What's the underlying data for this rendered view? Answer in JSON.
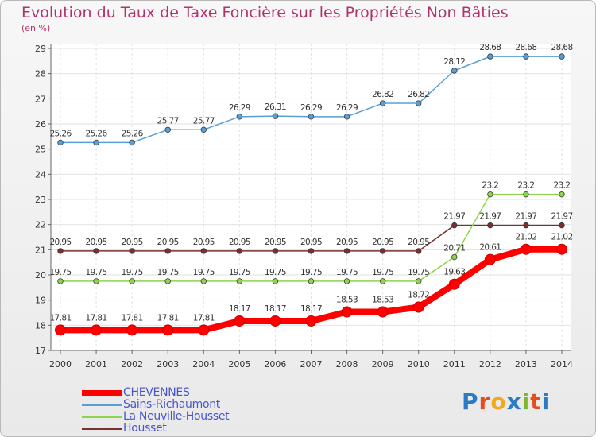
{
  "title": "Evolution du Taux de Taxe Foncière sur les Propriétés Non Bâties",
  "subtitle": "(en %)",
  "logo": "Proxiti",
  "logo_colors": [
    "#2b7bc4",
    "#e64c1e",
    "#f2a81d",
    "#2b7bc4",
    "#7ab929",
    "#e64c1e",
    "#2b7bc4"
  ],
  "chart_data": {
    "type": "line",
    "categories": [
      "2000",
      "2001",
      "2002",
      "2003",
      "2004",
      "2005",
      "2006",
      "2007",
      "2008",
      "2009",
      "2010",
      "2011",
      "2012",
      "2013",
      "2014"
    ],
    "ylim": [
      17,
      29
    ],
    "y_ticks": [
      "17",
      "18",
      "19",
      "20",
      "21",
      "22",
      "23",
      "24",
      "25",
      "26",
      "27",
      "28",
      "29"
    ],
    "grid": true,
    "legend_position": "bottom-left",
    "series": [
      {
        "name": "Sains-Richaumont",
        "color": "#5a9fd4",
        "emphasis": false,
        "values": [
          25.26,
          25.26,
          25.26,
          25.77,
          25.77,
          26.29,
          26.31,
          26.29,
          26.29,
          26.82,
          26.82,
          28.12,
          28.68,
          28.68,
          28.68
        ],
        "labels": [
          "25.26",
          "25.26",
          "25.26",
          "25.77",
          "25.77",
          "26.29",
          "26.31",
          "26.29",
          "26.29",
          "26.82",
          "26.82",
          "28.12",
          "28.68",
          "28.68",
          "28.68"
        ]
      },
      {
        "name": "Housset",
        "color": "#7a3030",
        "emphasis": false,
        "values": [
          20.95,
          20.95,
          20.95,
          20.95,
          20.95,
          20.95,
          20.95,
          20.95,
          20.95,
          20.95,
          20.95,
          21.97,
          21.97,
          21.97,
          21.97
        ],
        "labels": [
          "20.95",
          "20.95",
          "20.95",
          "20.95",
          "20.95",
          "20.95",
          "20.95",
          "20.95",
          "20.95",
          "20.95",
          "20.95",
          "21.97",
          "21.97",
          "21.97",
          "21.97"
        ]
      },
      {
        "name": "La Neuville-Housset",
        "color": "#8fd44d",
        "emphasis": false,
        "values": [
          19.75,
          19.75,
          19.75,
          19.75,
          19.75,
          19.75,
          19.75,
          19.75,
          19.75,
          19.75,
          19.75,
          20.71,
          23.2,
          23.2,
          23.2
        ],
        "labels": [
          "19.75",
          "19.75",
          "19.75",
          "19.75",
          "19.75",
          "19.75",
          "19.75",
          "19.75",
          "19.75",
          "19.75",
          "19.75",
          "20.71",
          "23.2",
          "23.2",
          "23.2"
        ]
      },
      {
        "name": "CHEVENNES",
        "color": "#ff0000",
        "emphasis": true,
        "values": [
          17.81,
          17.81,
          17.81,
          17.81,
          17.81,
          18.17,
          18.17,
          18.17,
          18.53,
          18.53,
          18.72,
          19.63,
          20.61,
          21.02,
          21.02
        ],
        "labels": [
          "17.81",
          "17.81",
          "17.81",
          "17.81",
          "17.81",
          "18.17",
          "18.17",
          "18.17",
          "18.53",
          "18.53",
          "18.72",
          "19.63",
          "20.61",
          "21.02",
          "21.02"
        ]
      }
    ],
    "legend": [
      "CHEVENNES",
      "Sains-Richaumont",
      "La Neuville-Housset",
      "Housset"
    ]
  }
}
